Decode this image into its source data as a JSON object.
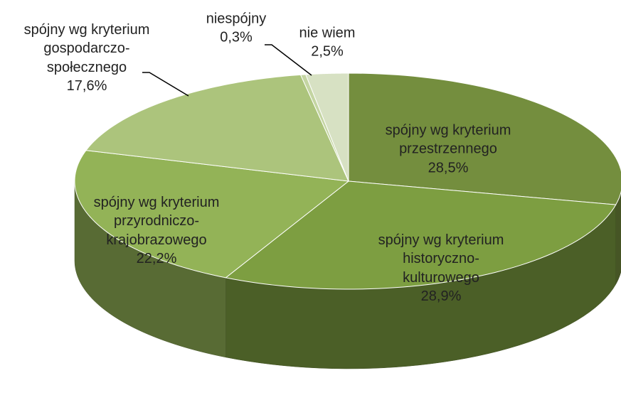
{
  "chart_data": {
    "type": "pie3d",
    "categories": [
      "spójny wg kryterium\nprzestrzennego",
      "spójny wg kryterium\nhistoryczno-\nkulturowego",
      "spójny wg kryterium\nprzyrodniczo-\nkrajobrazowego",
      "spójny wg kryterium\ngospodarczo-\nspołecznego",
      "niespójny",
      "nie wiem"
    ],
    "values": [
      28.5,
      28.9,
      22.2,
      17.6,
      0.3,
      2.5
    ],
    "value_labels": [
      "28,5%",
      "28,9%",
      "22,2%",
      "17,6%",
      "0,3%",
      "2,5%"
    ],
    "colors": [
      "#748e3e",
      "#7d9e41",
      "#93b357",
      "#acc47c",
      "#c4d5a2",
      "#d7e1c3"
    ]
  }
}
